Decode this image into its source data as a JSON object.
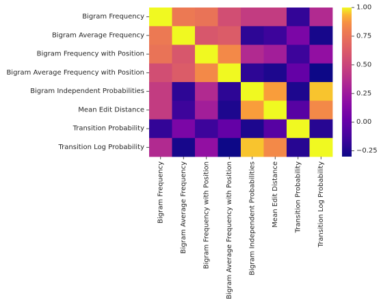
{
  "chart_data": {
    "type": "heatmap",
    "title": "",
    "xlabel": "",
    "ylabel": "",
    "colormap": "plasma",
    "row_labels": [
      "Bigram Frequency",
      "Bigram Average Frequency",
      "Bigram Frequency with Position",
      "Bigram Average Frequency with Position",
      "Bigram Independent Probabilities",
      "Mean Edit Distance",
      "Transition Probability",
      "Transition Log Probability"
    ],
    "col_labels": [
      "Bigram Frequency",
      "Bigram Average Frequency",
      "Bigram Frequency with Position",
      "Bigram Average Frequency with Position",
      "Bigram Independent Probabilities",
      "Mean Edit Distance",
      "Transition Probability",
      "Transition Log Probability"
    ],
    "values": [
      [
        1.0,
        0.78,
        0.75,
        0.55,
        0.45,
        0.45,
        -0.18,
        0.35
      ],
      [
        0.78,
        1.0,
        0.6,
        0.63,
        -0.2,
        -0.15,
        0.1,
        -0.27
      ],
      [
        0.75,
        0.6,
        1.0,
        0.85,
        0.35,
        0.28,
        -0.15,
        0.2
      ],
      [
        0.55,
        0.63,
        0.85,
        1.0,
        -0.2,
        -0.25,
        0.0,
        -0.3
      ],
      [
        0.45,
        -0.2,
        0.35,
        -0.2,
        1.0,
        0.9,
        -0.25,
        0.95
      ],
      [
        0.45,
        -0.15,
        0.28,
        -0.25,
        0.9,
        1.0,
        -0.05,
        0.85
      ],
      [
        -0.18,
        0.1,
        -0.15,
        0.0,
        -0.25,
        -0.05,
        1.0,
        -0.22
      ],
      [
        0.35,
        -0.27,
        0.2,
        -0.3,
        0.95,
        0.85,
        -0.22,
        1.0
      ]
    ],
    "vmin": -0.3,
    "vmax": 1.0,
    "colorbar_ticks": [
      1.0,
      0.75,
      0.5,
      0.25,
      0.0,
      -0.25
    ],
    "colorbar_tick_labels": [
      "1.00",
      "0.75",
      "0.50",
      "0.25",
      "0.00",
      "−0.25"
    ]
  }
}
